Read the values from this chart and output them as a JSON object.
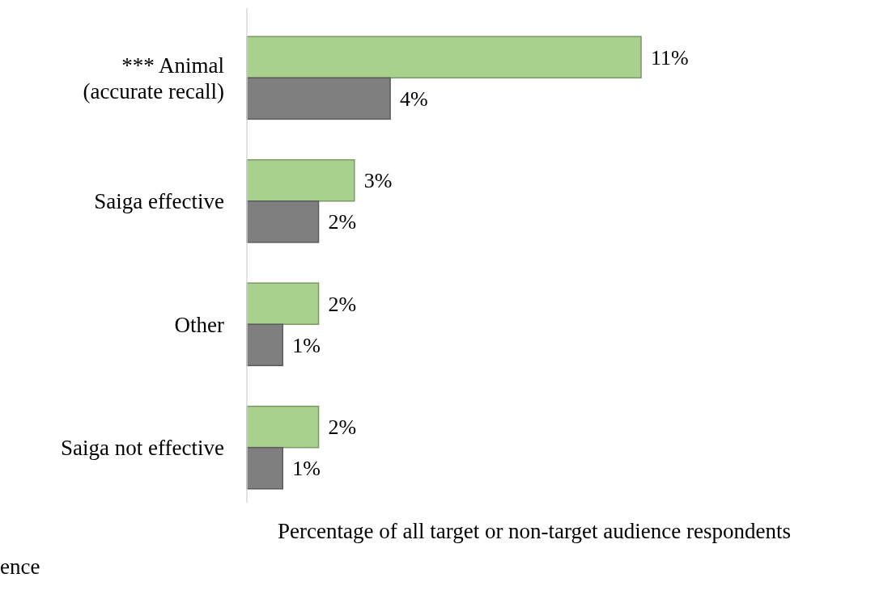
{
  "chart_data": {
    "type": "bar",
    "orientation": "horizontal",
    "xlabel": "Percentage of all target or non-target audience respondents",
    "categories": [
      "*** Animal\n(accurate recall)",
      "Saiga effective",
      "Other",
      "Saiga not effective"
    ],
    "series": [
      {
        "color": "#a9d18e",
        "values": [
          11,
          3,
          2,
          2
        ],
        "value_labels": [
          "11%",
          "3%",
          "2%",
          "2%"
        ]
      },
      {
        "color": "#7f7f7f",
        "values": [
          4,
          2,
          1,
          1
        ],
        "value_labels": [
          "4%",
          "2%",
          "1%",
          "1%"
        ]
      }
    ],
    "tick_labels": "y",
    "annotations": [
      "ence"
    ]
  }
}
